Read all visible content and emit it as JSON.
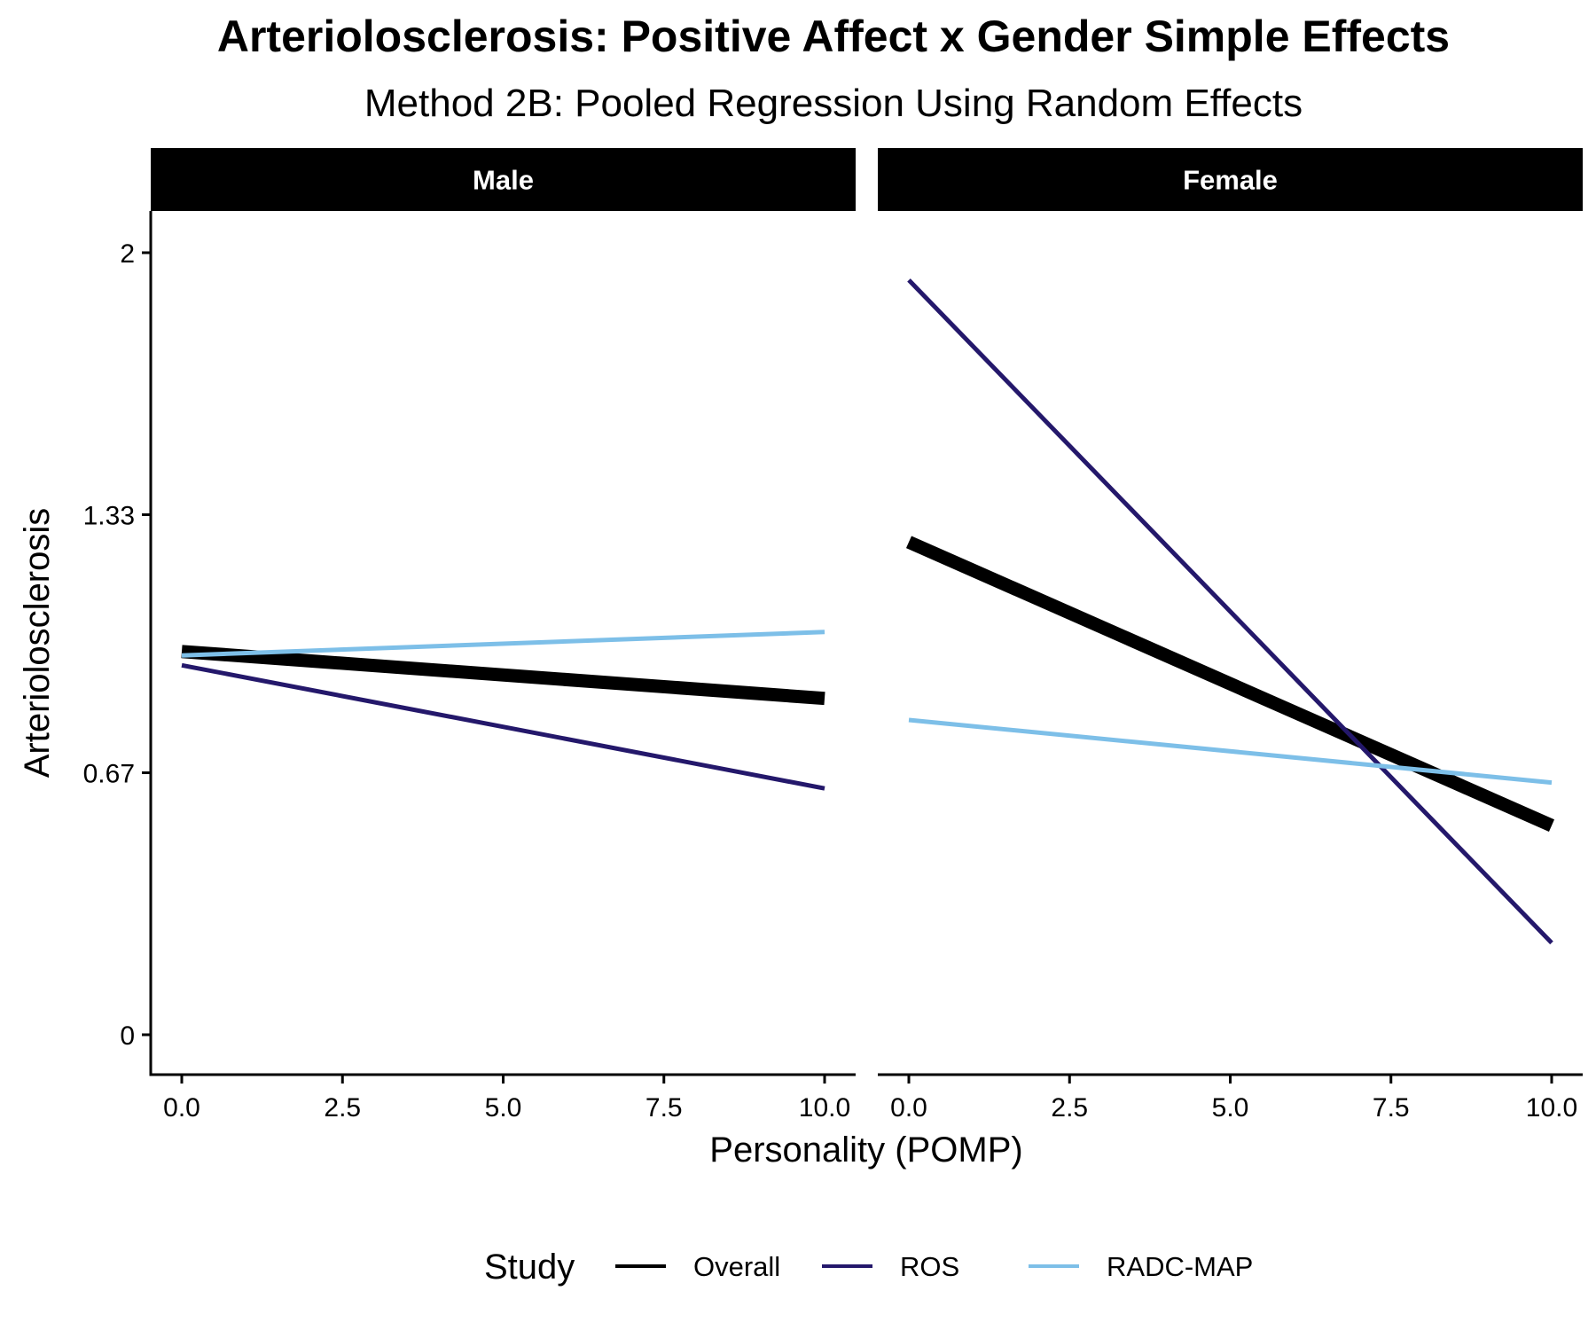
{
  "title": "Arteriolosclerosis: Positive Affect x Gender Simple Effects",
  "subtitle": "Method 2B: Pooled Regression Using Random Effects",
  "chart_data": {
    "type": "line",
    "title": "Arteriolosclerosis: Positive Affect x Gender Simple Effects",
    "subtitle": "Method 2B: Pooled Regression Using Random Effects",
    "xlabel": "Personality (POMP)",
    "ylabel": "Arteriolosclerosis",
    "xlim": [
      -0.5,
      10.5
    ],
    "ylim": [
      -0.1,
      2.1
    ],
    "x_ticks": [
      0,
      2.5,
      5,
      7.5,
      10
    ],
    "x_tick_labels": [
      "0.0",
      "2.5",
      "5.0",
      "7.5",
      "10.0"
    ],
    "y_ticks": [
      0,
      0.67,
      1.33,
      2
    ],
    "y_tick_labels": [
      "0",
      "0.67",
      "1.33",
      "2"
    ],
    "grid": false,
    "legend": {
      "title": "Study",
      "position": "bottom",
      "entries": [
        "Overall",
        "ROS",
        "RADC-MAP"
      ]
    },
    "series_styles": [
      {
        "name": "Overall",
        "color": "#000000",
        "weight": "thick"
      },
      {
        "name": "ROS",
        "color": "#24186b",
        "weight": "thin"
      },
      {
        "name": "RADC-MAP",
        "color": "#7dbfe8",
        "weight": "thin"
      }
    ],
    "panels": [
      {
        "label": "Male",
        "series": [
          {
            "name": "Overall",
            "x": [
              0,
              10
            ],
            "y": [
              0.98,
              0.86
            ]
          },
          {
            "name": "ROS",
            "x": [
              0,
              10
            ],
            "y": [
              0.945,
              0.63
            ]
          },
          {
            "name": "RADC-MAP",
            "x": [
              0,
              10
            ],
            "y": [
              0.97,
              1.03
            ]
          }
        ]
      },
      {
        "label": "Female",
        "series": [
          {
            "name": "Overall",
            "x": [
              0,
              10
            ],
            "y": [
              1.26,
              0.535
            ]
          },
          {
            "name": "ROS",
            "x": [
              0,
              10
            ],
            "y": [
              1.93,
              0.235
            ]
          },
          {
            "name": "RADC-MAP",
            "x": [
              0,
              10
            ],
            "y": [
              0.805,
              0.645
            ]
          }
        ]
      }
    ]
  }
}
